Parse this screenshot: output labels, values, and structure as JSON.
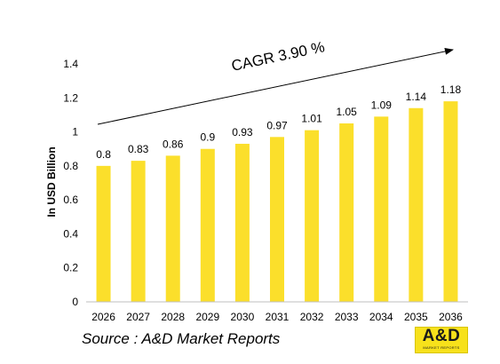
{
  "chart_data": {
    "type": "bar",
    "categories": [
      "2026",
      "2027",
      "2028",
      "2029",
      "2030",
      "2031",
      "2032",
      "2033",
      "2034",
      "2035",
      "2036"
    ],
    "values": [
      0.8,
      0.83,
      0.86,
      0.9,
      0.93,
      0.97,
      1.01,
      1.05,
      1.09,
      1.14,
      1.18
    ],
    "data_labels": [
      "0.8",
      "0.83",
      "0.86",
      "0.9",
      "0.93",
      "0.97",
      "1.01",
      "1.05",
      "1.09",
      "1.14",
      "1.18"
    ],
    "ylabel": "In USD Billion",
    "ylim": [
      0,
      1.4
    ],
    "yticks": [
      "0",
      "0.2",
      "0.4",
      "0.6",
      "0.8",
      "1",
      "1.2",
      "1.4"
    ],
    "grid": false,
    "bar_color": "#fbdf2b",
    "annotation": "CAGR 3.90 %"
  },
  "source_text": "Source : A&D Market Reports",
  "logo": {
    "main": "A&D",
    "sub": "MARKET REPORTS",
    "color": "#f7e11b"
  }
}
